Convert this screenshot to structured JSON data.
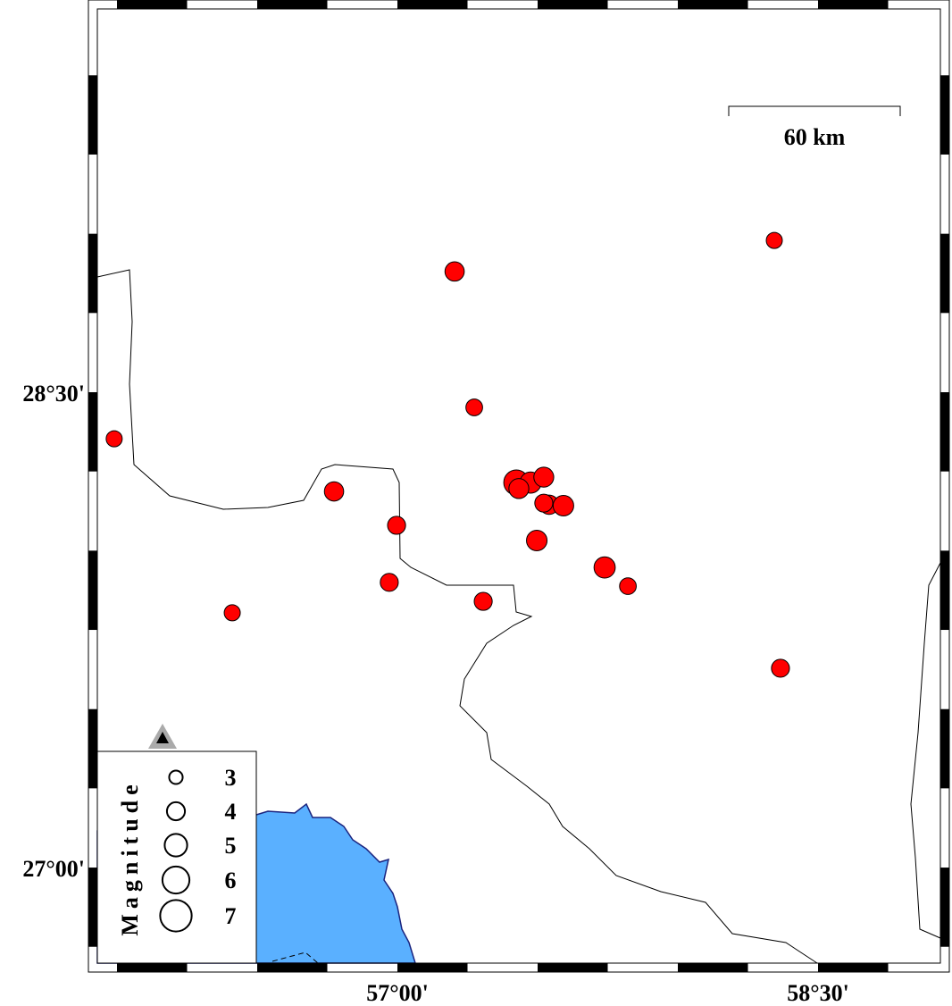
{
  "map": {
    "extent": {
      "lon": [
        55.93,
        58.94
      ],
      "lat": [
        26.7,
        29.71
      ]
    },
    "frame_style": "checkerboard",
    "lon_ticks": [
      {
        "value": 57.0,
        "label": "57°00'"
      },
      {
        "value": 58.5,
        "label": "58°30'"
      }
    ],
    "lat_ticks": [
      {
        "value": 28.5,
        "label": "28°30'"
      },
      {
        "value": 27.0,
        "label": "27°00'"
      }
    ],
    "scale_bar": {
      "label": "60 km"
    },
    "colors": {
      "land": "#ffffff",
      "sea": "#5ab0ff",
      "coastline": "#1a237e",
      "event_fill": "#ff0000",
      "event_stroke": "#000000",
      "station": "#000000",
      "station_halo": "#aaaaaa"
    },
    "station": {
      "lon": 56.23,
      "lat": 27.31,
      "icon": "triangle"
    },
    "events": [
      {
        "lon": 57.204,
        "lat": 28.881,
        "mag": 3.0
      },
      {
        "lon": 58.344,
        "lat": 28.979,
        "mag": 2.5
      },
      {
        "lon": 55.99,
        "lat": 28.353,
        "mag": 2.5
      },
      {
        "lon": 57.274,
        "lat": 28.452,
        "mag": 2.6
      },
      {
        "lon": 56.774,
        "lat": 28.187,
        "mag": 3.0
      },
      {
        "lon": 56.997,
        "lat": 28.08,
        "mag": 2.8
      },
      {
        "lon": 57.424,
        "lat": 28.215,
        "mag": 3.9
      },
      {
        "lon": 57.475,
        "lat": 28.215,
        "mag": 3.3
      },
      {
        "lon": 57.522,
        "lat": 28.232,
        "mag": 3.1
      },
      {
        "lon": 57.433,
        "lat": 28.196,
        "mag": 3.1
      },
      {
        "lon": 57.541,
        "lat": 28.145,
        "mag": 3.0
      },
      {
        "lon": 57.522,
        "lat": 28.15,
        "mag": 2.8
      },
      {
        "lon": 57.592,
        "lat": 28.142,
        "mag": 3.2
      },
      {
        "lon": 57.497,
        "lat": 28.032,
        "mag": 3.2
      },
      {
        "lon": 57.739,
        "lat": 27.947,
        "mag": 3.3
      },
      {
        "lon": 57.822,
        "lat": 27.888,
        "mag": 2.6
      },
      {
        "lon": 56.971,
        "lat": 27.9,
        "mag": 2.8
      },
      {
        "lon": 57.306,
        "lat": 27.84,
        "mag": 2.8
      },
      {
        "lon": 56.411,
        "lat": 27.804,
        "mag": 2.5
      },
      {
        "lon": 58.366,
        "lat": 27.629,
        "mag": 2.8
      }
    ],
    "legend": {
      "title": "Magnitude",
      "items": [
        {
          "mag": 3,
          "label": "3"
        },
        {
          "mag": 4,
          "label": "4"
        },
        {
          "mag": 5,
          "label": "5"
        },
        {
          "mag": 6,
          "label": "6"
        },
        {
          "mag": 7,
          "label": "7"
        }
      ]
    }
  }
}
